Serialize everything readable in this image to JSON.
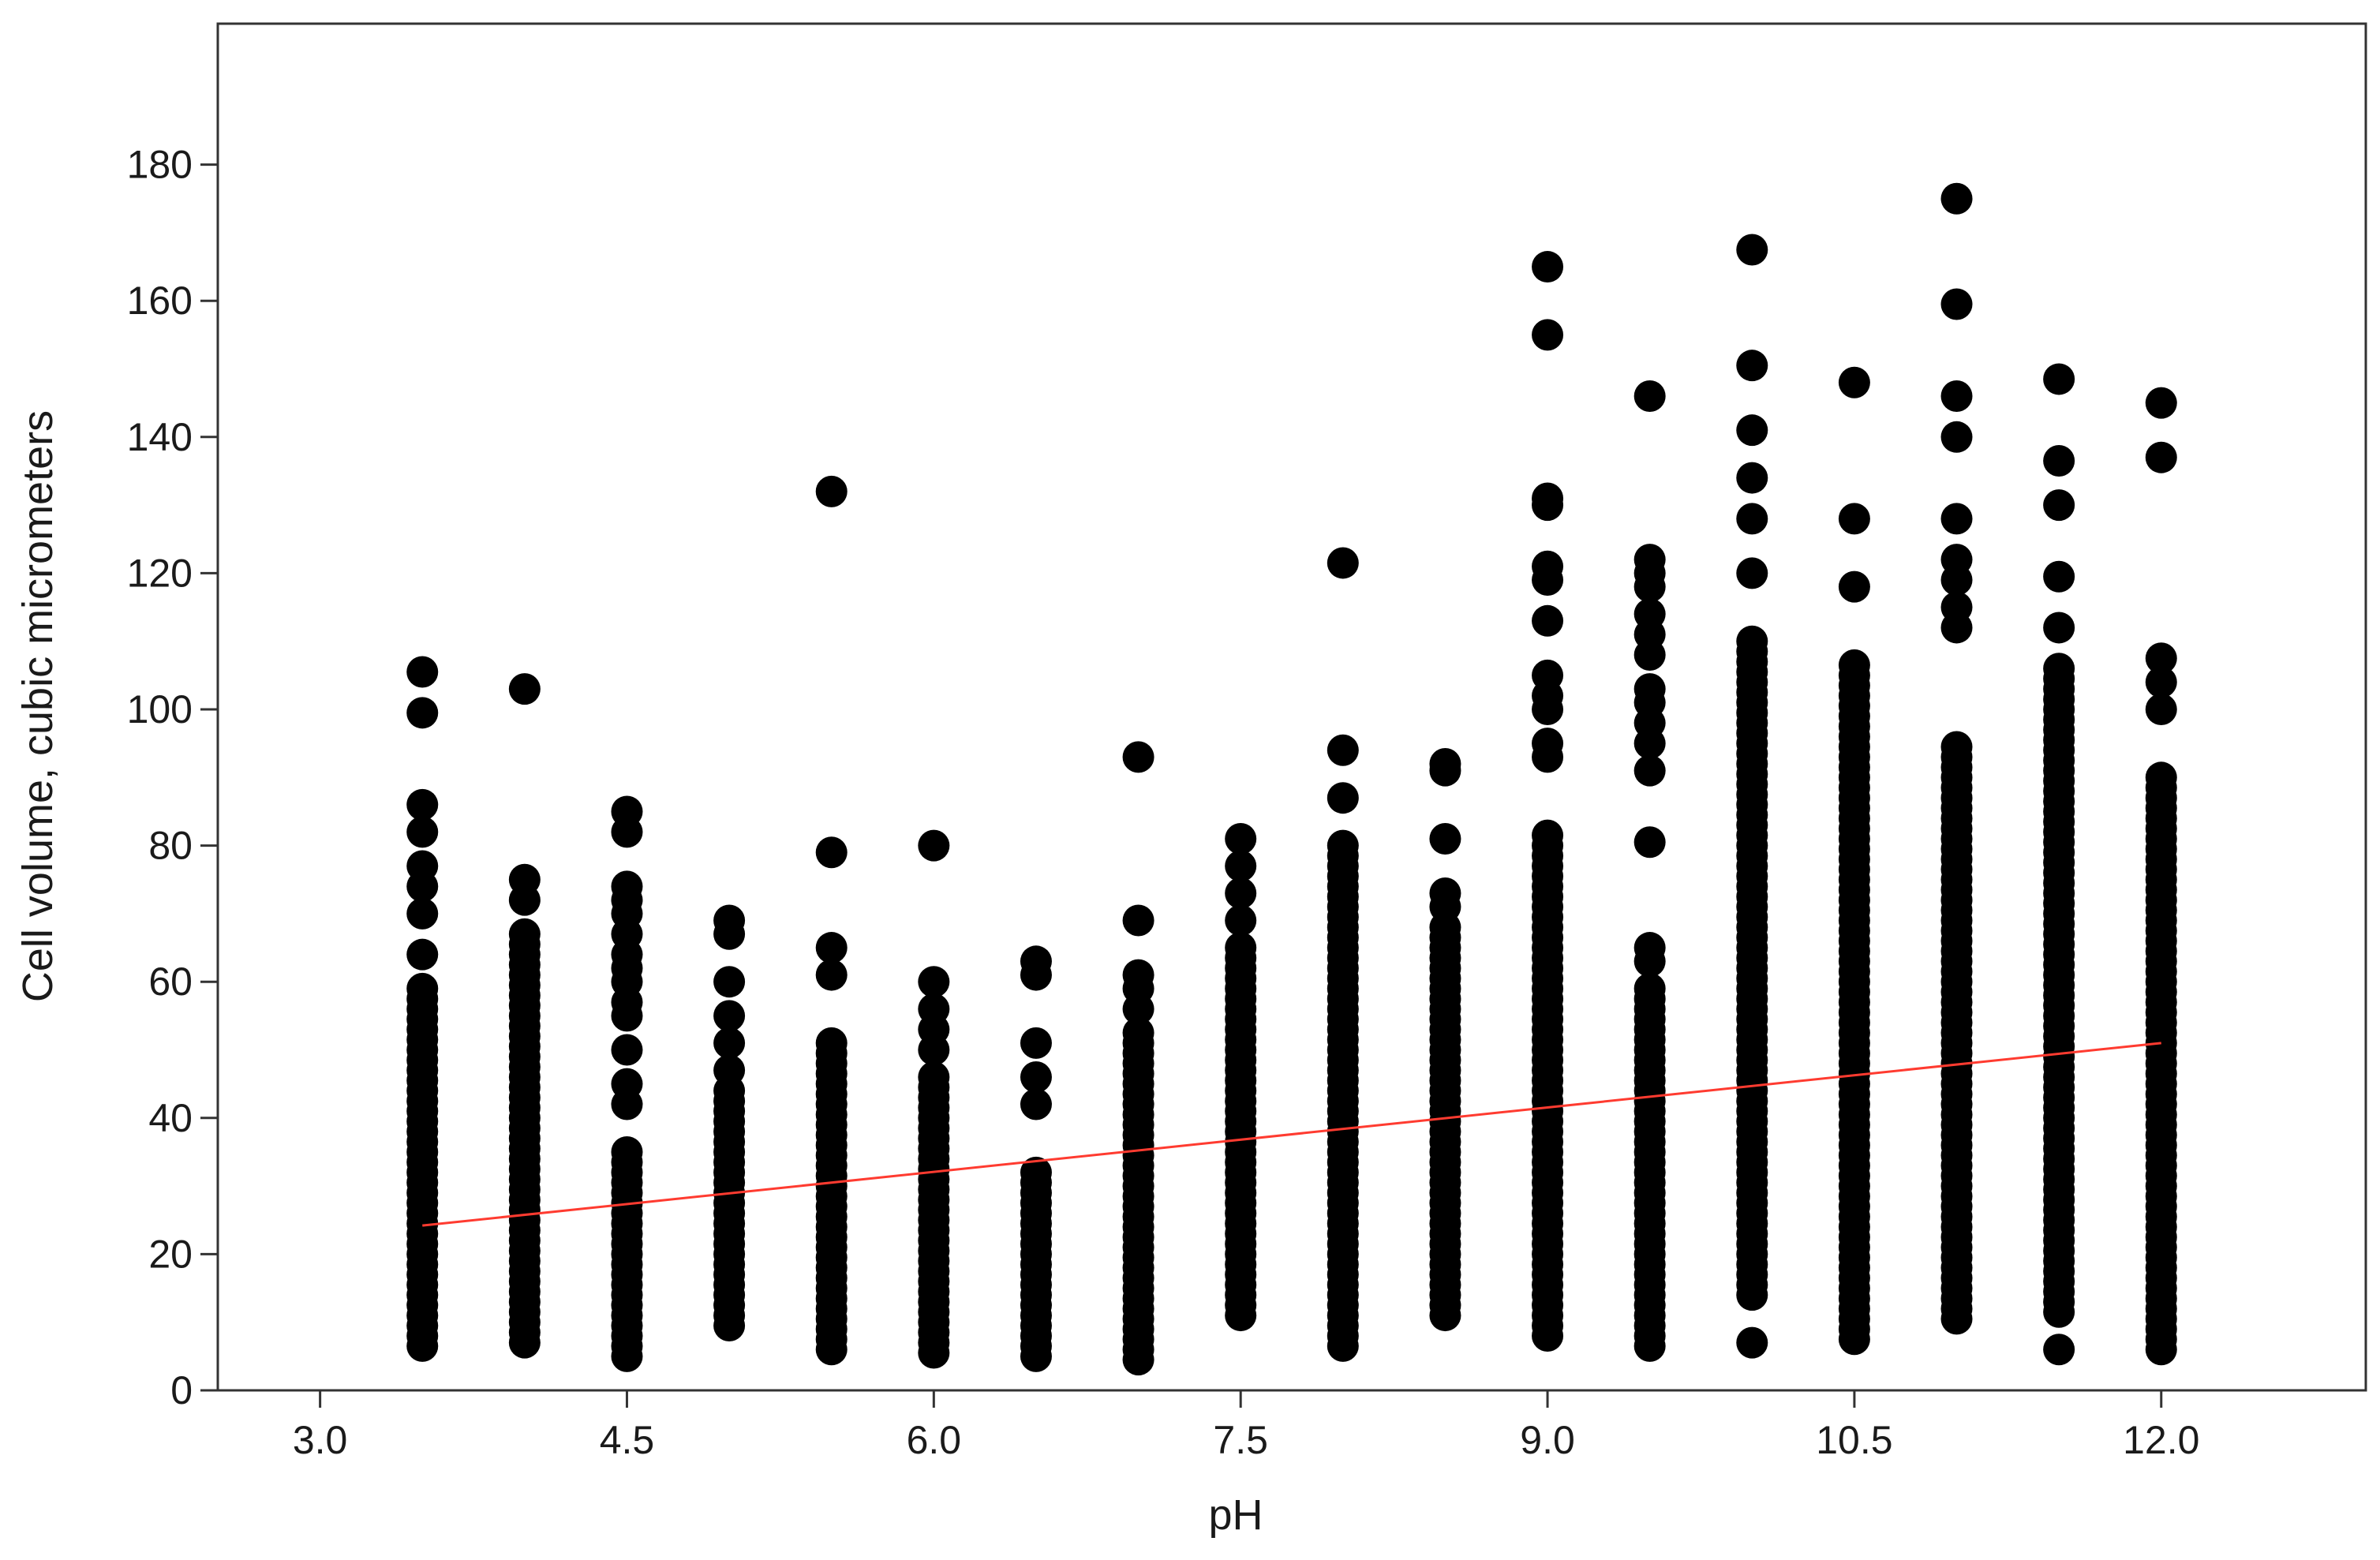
{
  "chart_data": {
    "type": "scatter",
    "title": "",
    "xlabel": "pH",
    "ylabel": "Cell volume, cubic micrometers",
    "xlim": [
      2.5,
      13.0
    ],
    "ylim": [
      0,
      180
    ],
    "grid": false,
    "x_ticks": [
      "3.0",
      "4.5",
      "6.0",
      "7.5",
      "9.0",
      "10.5",
      "12.0"
    ],
    "y_ticks": [
      "0",
      "20",
      "40",
      "60",
      "80",
      "100",
      "120",
      "140",
      "160",
      "180"
    ],
    "point_color": "#000000",
    "fit_color": "#ff3b30",
    "groups": [
      {
        "x": 3.5,
        "min": 6.5,
        "dense_max": 60,
        "extra": [
          64,
          70,
          74,
          77,
          82,
          86,
          99.5,
          105.5
        ]
      },
      {
        "x": 4.0,
        "min": 7.0,
        "dense_max": 68,
        "extra": [
          72,
          75,
          103
        ]
      },
      {
        "x": 4.5,
        "min": 5.0,
        "dense_max": 35,
        "extra": [
          42,
          45,
          50,
          55,
          57,
          60,
          62,
          64,
          67,
          70,
          72,
          74,
          82,
          85
        ]
      },
      {
        "x": 5.0,
        "min": 9.5,
        "dense_max": 44,
        "extra": [
          47,
          51,
          55,
          60,
          67,
          69
        ]
      },
      {
        "x": 5.5,
        "min": 6.0,
        "dense_max": 52,
        "extra": [
          61,
          65,
          79,
          132
        ]
      },
      {
        "x": 6.0,
        "min": 5.5,
        "dense_max": 46,
        "extra": [
          50,
          53,
          56,
          60,
          80
        ]
      },
      {
        "x": 6.5,
        "min": 5.0,
        "dense_max": 32,
        "extra": [
          42,
          46,
          51,
          61,
          63
        ]
      },
      {
        "x": 7.0,
        "min": 4.5,
        "dense_max": 53,
        "extra": [
          56,
          59,
          61,
          69,
          93
        ]
      },
      {
        "x": 7.5,
        "min": 11.0,
        "dense_max": 65,
        "extra": [
          69,
          73,
          77,
          81
        ]
      },
      {
        "x": 8.0,
        "min": 6.5,
        "dense_max": 80,
        "extra": [
          87,
          94,
          121.5
        ]
      },
      {
        "x": 8.5,
        "min": 11.0,
        "dense_max": 68,
        "extra": [
          71,
          73,
          81,
          91,
          92
        ]
      },
      {
        "x": 9.0,
        "min": 8.0,
        "dense_max": 82,
        "extra": [
          93,
          95,
          100,
          102,
          105,
          113,
          119,
          121,
          130,
          131,
          155,
          165
        ]
      },
      {
        "x": 9.5,
        "min": 6.5,
        "dense_max": 60,
        "extra": [
          63,
          65,
          80.5,
          91,
          95,
          98,
          101,
          103,
          108,
          111,
          114,
          118,
          120,
          122,
          146
        ]
      },
      {
        "x": 10.0,
        "min": 7.0,
        "min_dense": 14,
        "dense_max": 110,
        "extra": [
          120,
          128,
          134,
          141,
          150.5,
          167.5
        ]
      },
      {
        "x": 10.5,
        "min": 7.5,
        "dense_max": 107,
        "extra": [
          118,
          128,
          148
        ]
      },
      {
        "x": 11.0,
        "min": 10.5,
        "dense_max": 95,
        "extra": [
          112,
          115,
          119,
          122,
          128,
          140,
          146,
          159.5,
          175
        ]
      },
      {
        "x": 11.5,
        "min": 6.0,
        "min_dense": 11.5,
        "dense_max": 106,
        "extra": [
          112,
          119.5,
          130,
          136.5,
          148.5
        ]
      },
      {
        "x": 12.0,
        "min": 6.0,
        "dense_max": 91,
        "extra": [
          100,
          104,
          107.5,
          137,
          145
        ]
      }
    ],
    "fit_line": {
      "x": [
        3.5,
        12.0
      ],
      "y": [
        24.2,
        51.0
      ]
    }
  }
}
